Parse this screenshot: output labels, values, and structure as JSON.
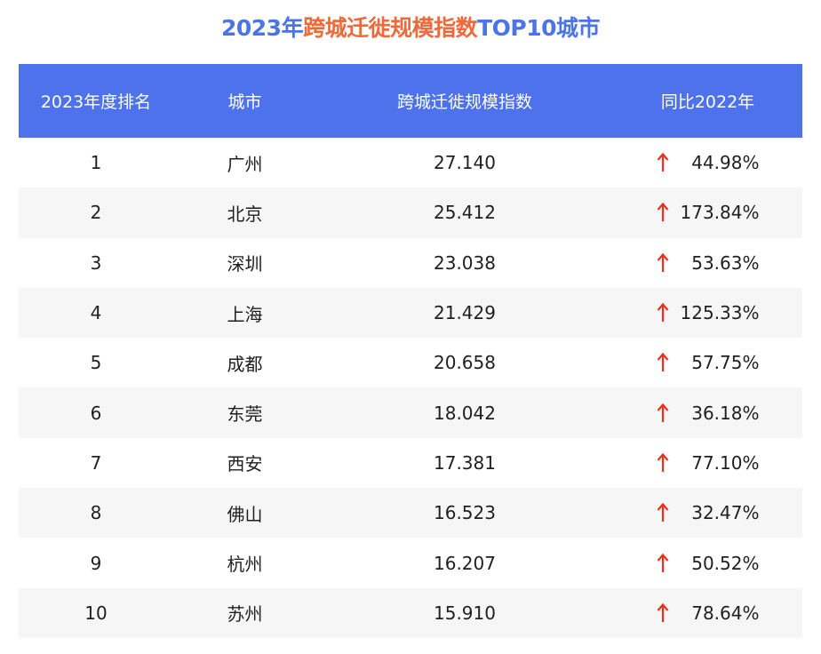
{
  "title": {
    "part1": "2023年",
    "part2": "跨城迁徙规模指数",
    "part3": "TOP10城市"
  },
  "colors": {
    "header_bg": "#4d72ec",
    "title_blue": "#4a74e8",
    "title_orange": "#ee6a3a",
    "arrow_red": "#e8321e",
    "stripe": "#f6f6f6"
  },
  "chart_data": {
    "type": "table",
    "columns": [
      "2023年度排名",
      "城市",
      "跨城迁徙规模指数",
      "同比2022年"
    ],
    "rows": [
      {
        "rank": "1",
        "city": "广州",
        "index": "27.140",
        "change": "44.98%",
        "direction": "up"
      },
      {
        "rank": "2",
        "city": "北京",
        "index": "25.412",
        "change": "173.84%",
        "direction": "up"
      },
      {
        "rank": "3",
        "city": "深圳",
        "index": "23.038",
        "change": "53.63%",
        "direction": "up"
      },
      {
        "rank": "4",
        "city": "上海",
        "index": "21.429",
        "change": "125.33%",
        "direction": "up"
      },
      {
        "rank": "5",
        "city": "成都",
        "index": "20.658",
        "change": "57.75%",
        "direction": "up"
      },
      {
        "rank": "6",
        "city": "东莞",
        "index": "18.042",
        "change": "36.18%",
        "direction": "up"
      },
      {
        "rank": "7",
        "city": "西安",
        "index": "17.381",
        "change": "77.10%",
        "direction": "up"
      },
      {
        "rank": "8",
        "city": "佛山",
        "index": "16.523",
        "change": "32.47%",
        "direction": "up"
      },
      {
        "rank": "9",
        "city": "杭州",
        "index": "16.207",
        "change": "50.52%",
        "direction": "up"
      },
      {
        "rank": "10",
        "city": "苏州",
        "index": "15.910",
        "change": "78.64%",
        "direction": "up"
      }
    ]
  }
}
